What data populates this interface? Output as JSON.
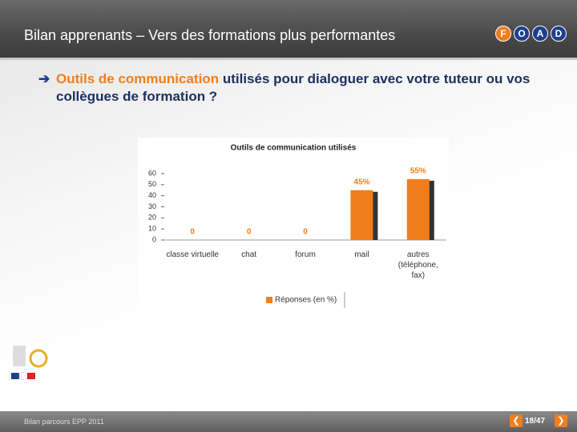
{
  "header": {
    "title": "Bilan apprenants – Vers des formations plus performantes",
    "logo": [
      "F",
      "O",
      "A",
      "D"
    ]
  },
  "bullet": {
    "highlight": "Outils de communication",
    "text": "utilisés pour dialoguer avec votre tuteur ou vos collègues de formation ?"
  },
  "chart_data": {
    "type": "bar",
    "title": "Outils de communication utilisés",
    "categories": [
      "classe virtuelle",
      "chat",
      "forum",
      "mail",
      "autres (téléphone, fax)"
    ],
    "series": [
      {
        "name": "Réponses (en %)",
        "color": "#f07e1b",
        "values": [
          0,
          0,
          0,
          45,
          55
        ],
        "value_labels": [
          "0",
          "0",
          "0",
          "45%",
          "55%"
        ]
      }
    ],
    "ylim": [
      0,
      60
    ],
    "yticks": [
      0,
      10,
      20,
      30,
      40,
      50,
      60
    ],
    "legend": "bottom"
  },
  "footer": {
    "text": "Bilan parcours EPP 2011",
    "page": "18/47"
  }
}
